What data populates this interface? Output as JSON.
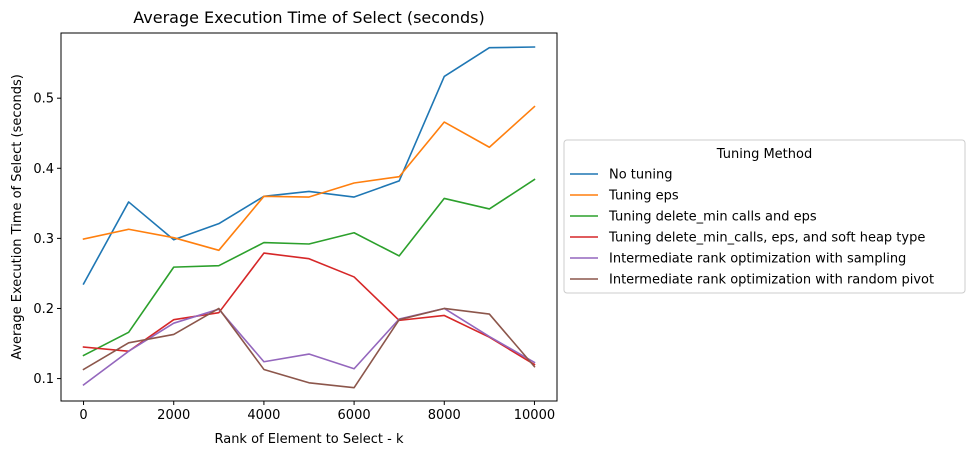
{
  "chart_data": {
    "type": "line",
    "title": "Average Execution Time of Select (seconds)",
    "xlabel": "Rank of Element to Select - k",
    "ylabel": "Average Execution Time of Select (seconds)",
    "xlim": [
      -500,
      10500
    ],
    "ylim": [
      0.068,
      0.593
    ],
    "xticks": [
      0,
      2000,
      4000,
      6000,
      8000,
      10000
    ],
    "yticks": [
      0.1,
      0.2,
      0.3,
      0.4,
      0.5
    ],
    "xtick_labels": [
      "0",
      "2000",
      "4000",
      "6000",
      "8000",
      "10000"
    ],
    "ytick_labels": [
      "0.1",
      "0.2",
      "0.3",
      "0.4",
      "0.5"
    ],
    "grid": false,
    "legend": {
      "title": "Tuning Method",
      "placement": "outside-right"
    },
    "x": [
      0,
      1000,
      2000,
      3000,
      4000,
      5000,
      6000,
      7000,
      8000,
      9000,
      10000
    ],
    "series": [
      {
        "name": "No tuning",
        "color": "#1f77b4",
        "values": [
          0.235,
          0.352,
          0.298,
          0.321,
          0.36,
          0.367,
          0.359,
          0.382,
          0.531,
          0.572,
          0.573
        ]
      },
      {
        "name": "Tuning eps",
        "color": "#ff7f0e",
        "values": [
          0.299,
          0.313,
          0.301,
          0.283,
          0.36,
          0.359,
          0.379,
          0.388,
          0.466,
          0.43,
          0.488
        ]
      },
      {
        "name": "Tuning delete_min calls and eps",
        "color": "#2ca02c",
        "values": [
          0.133,
          0.166,
          0.259,
          0.261,
          0.294,
          0.292,
          0.308,
          0.275,
          0.357,
          0.342,
          0.384
        ]
      },
      {
        "name": "Tuning delete_min_calls, eps, and soft heap type",
        "color": "#d62728",
        "values": [
          0.145,
          0.139,
          0.184,
          0.194,
          0.279,
          0.271,
          0.245,
          0.183,
          0.19,
          0.159,
          0.12
        ]
      },
      {
        "name": "Intermediate rank optimization with sampling",
        "color": "#9467bd",
        "values": [
          0.091,
          0.139,
          0.179,
          0.199,
          0.124,
          0.135,
          0.114,
          0.185,
          0.2,
          0.16,
          0.123
        ]
      },
      {
        "name": "Intermediate rank optimization with random pivot",
        "color": "#8c564b",
        "values": [
          0.113,
          0.151,
          0.163,
          0.2,
          0.113,
          0.094,
          0.087,
          0.184,
          0.2,
          0.192,
          0.117
        ]
      }
    ]
  }
}
